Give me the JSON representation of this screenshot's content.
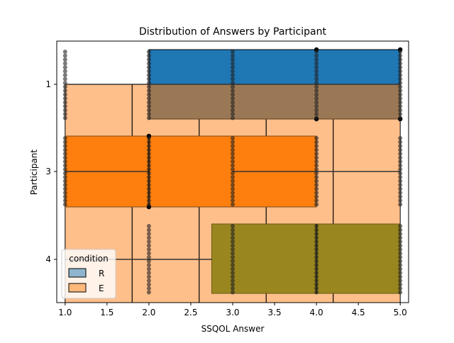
{
  "chart_data": {
    "type": "box",
    "title": "Distribution of Answers by Participant",
    "xlabel": "SSQOL Answer",
    "ylabel": "Participant",
    "xlim": [
      0.9,
      5.1
    ],
    "x_ticks": [
      1.0,
      1.5,
      2.0,
      2.5,
      3.0,
      3.5,
      4.0,
      4.5,
      5.0
    ],
    "x_tick_labels": [
      "1.0",
      "1.5",
      "2.0",
      "2.5",
      "3.0",
      "3.5",
      "4.0",
      "4.5",
      "5.0"
    ],
    "y_ticks": [
      1,
      3,
      4
    ],
    "y_tick_labels": [
      "1",
      "3",
      "4"
    ],
    "legend": {
      "title": "condition",
      "position": "lower-left",
      "entries": [
        {
          "label": "R",
          "color": "#1f77b4"
        },
        {
          "label": "E",
          "color": "#ff7f0e"
        }
      ]
    },
    "colors": {
      "R": "#1f77b4",
      "E": "#ff7f0e",
      "overlap": "#9b7855",
      "olive": "#9a861f",
      "light_orange": "#ffbf8a"
    },
    "series": [
      {
        "name": "E",
        "participant": "all",
        "min": 1.0,
        "q1": 1.8,
        "median": 2.6,
        "q3": 3.4,
        "q4": 4.2,
        "max": 5.0
      },
      {
        "name": "R",
        "participant": "1",
        "min": 2.0,
        "q1": 2.0,
        "median": 5.0,
        "q3": 5.0,
        "max": 5.0
      },
      {
        "name": "R",
        "participant": "3",
        "min": 1.0,
        "q1": 1.0,
        "median": 2.0,
        "q3": 4.0,
        "max": 4.0
      },
      {
        "name": "R",
        "participant": "4",
        "min": 1.0,
        "q1": 2.75,
        "median": 4.0,
        "q3": 5.0,
        "max": 5.0
      }
    ],
    "strip_points": [
      {
        "x": 1.0,
        "participant": "1"
      },
      {
        "x": 2.0,
        "participant": "1"
      },
      {
        "x": 3.0,
        "participant": "1"
      },
      {
        "x": 4.0,
        "participant": "1"
      },
      {
        "x": 5.0,
        "participant": "1"
      },
      {
        "x": 1.0,
        "participant": "3"
      },
      {
        "x": 2.0,
        "participant": "3"
      },
      {
        "x": 3.0,
        "participant": "3"
      },
      {
        "x": 4.0,
        "participant": "3"
      },
      {
        "x": 5.0,
        "participant": "3"
      },
      {
        "x": 2.0,
        "participant": "4"
      },
      {
        "x": 3.0,
        "participant": "4"
      },
      {
        "x": 4.0,
        "participant": "4"
      },
      {
        "x": 5.0,
        "participant": "4"
      }
    ]
  }
}
